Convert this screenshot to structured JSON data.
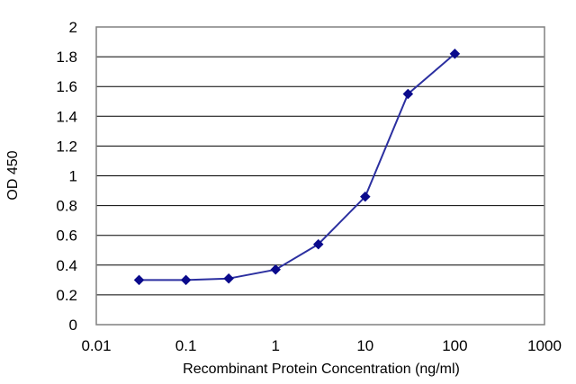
{
  "chart_data": {
    "type": "line",
    "xlabel": "Recombinant Protein Concentration (ng/ml)",
    "ylabel": "OD 450",
    "xscale": "log",
    "xlim": [
      0.01,
      1000
    ],
    "ylim": [
      0,
      2
    ],
    "x_ticks": [
      0.01,
      0.1,
      1,
      10,
      100,
      1000
    ],
    "x_tick_labels": [
      "0.01",
      "0.1",
      "1",
      "10",
      "100",
      "1000"
    ],
    "y_ticks": [
      0,
      0.2,
      0.4,
      0.6,
      0.8,
      1,
      1.2,
      1.4,
      1.6,
      1.8,
      2
    ],
    "y_tick_labels": [
      "0",
      "0.2",
      "0.4",
      "0.6",
      "0.8",
      "1",
      "1.2",
      "1.4",
      "1.6",
      "1.8",
      "2"
    ],
    "grid": "horizontal",
    "legend": "none",
    "series": [
      {
        "color": "#2b2fa0",
        "marker": "diamond",
        "x": [
          0.03,
          0.1,
          0.3,
          1,
          3,
          10,
          30,
          100
        ],
        "y": [
          0.3,
          0.3,
          0.31,
          0.37,
          0.54,
          0.86,
          1.55,
          1.82
        ]
      }
    ],
    "colors": {
      "plot_border": "#808080",
      "gridline": "#000000",
      "line": "#2b2fa0",
      "marker": "#0a0a8c"
    }
  }
}
